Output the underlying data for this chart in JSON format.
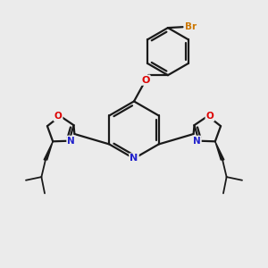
{
  "background_color": "#ebebeb",
  "bond_color": "#1a1a1a",
  "nitrogen_color": "#2222cc",
  "oxygen_color": "#dd0000",
  "bromine_color": "#cc7700",
  "figsize": [
    3.0,
    3.0
  ],
  "dpi": 100,
  "xlim": [
    -3.2,
    3.2
  ],
  "ylim": [
    -3.5,
    3.0
  ]
}
